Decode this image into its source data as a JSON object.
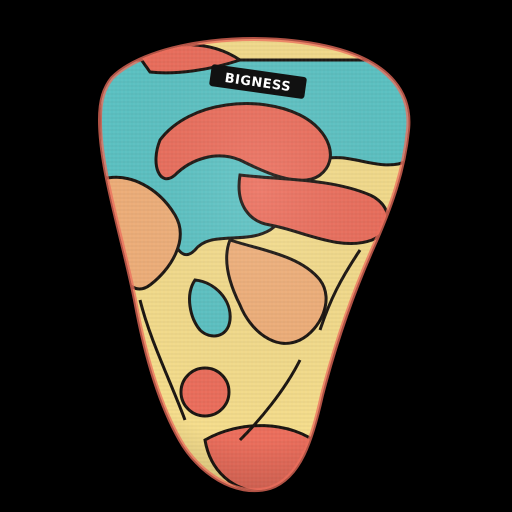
{
  "colors": {
    "background": "#000000",
    "base_cream": "#f5dd8c",
    "coral": "#ec6e5c",
    "teal": "#5cc3c4",
    "peach": "#f1b07a",
    "outline": "#1a1410",
    "label_bg": "#111111",
    "label_fg": "#ffffff"
  },
  "object": {
    "description_icon": "cushion-icon"
  },
  "brand": {
    "label": "BIGNESS"
  }
}
